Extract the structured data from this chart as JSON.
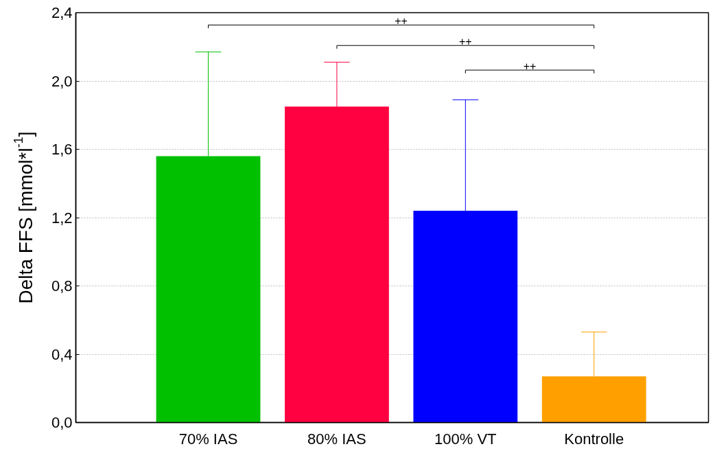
{
  "chart_data": {
    "type": "bar",
    "ylabel": "Delta FFS [mmol*l$^{-1}$]",
    "categories": [
      "70% IAS",
      "80% IAS",
      "100% VT",
      "Kontrolle"
    ],
    "values": [
      1.56,
      1.85,
      1.24,
      0.27
    ],
    "colors": [
      "#00c000",
      "#ff0040",
      "#0000ff",
      "#ffa000"
    ],
    "errors": [
      [
        1.56,
        2.17
      ],
      [
        1.85,
        2.11
      ],
      [
        1.24,
        1.89
      ],
      [
        0.27,
        0.53
      ]
    ],
    "ylim": [
      0,
      2.4
    ],
    "yticks": [
      {
        "value": 0,
        "label": "0,0"
      },
      {
        "value": 0.4,
        "label": "0,4"
      },
      {
        "value": 0.8,
        "label": "0,8"
      },
      {
        "value": 1.2,
        "label": "1,2"
      },
      {
        "value": 1.6,
        "label": "1,6"
      },
      {
        "value": 2.0,
        "label": "2,0"
      },
      {
        "value": 2.4,
        "label": "2,4"
      }
    ],
    "grid": "y",
    "annotations": [
      "++",
      "++",
      "++"
    ]
  }
}
